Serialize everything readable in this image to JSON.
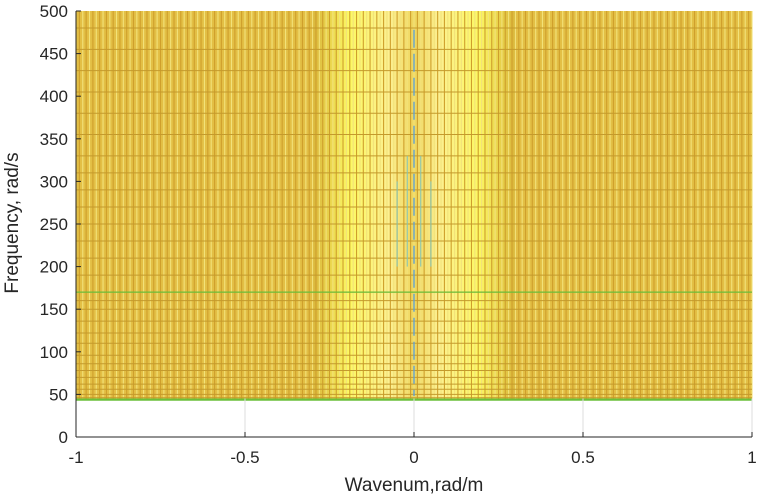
{
  "chart_data": {
    "type": "heatmap",
    "title": "",
    "xlabel": "Wavenum,rad/m",
    "ylabel": "Frequency, rad/s",
    "xlim": [
      -1,
      1
    ],
    "ylim": [
      0,
      500
    ],
    "x_ticks": [
      "-1",
      "-0.5",
      "0",
      "0.5",
      "1"
    ],
    "y_ticks": [
      "0",
      "50",
      "100",
      "150",
      "200",
      "250",
      "300",
      "350",
      "400",
      "450",
      "500"
    ],
    "grid": "on",
    "plot_style": "dispersion mesh (yellow/orange surface viewed from above)",
    "mesh": {
      "frequency_range": [
        45,
        500
      ],
      "bright_bands_wavenumber": [
        -0.3,
        0.3
      ],
      "row_frequencies": [
        46,
        50,
        56,
        62,
        70,
        78,
        86,
        96,
        110,
        122,
        136,
        150,
        160,
        170,
        190,
        210,
        230,
        250,
        270,
        290,
        310,
        330,
        355,
        380,
        405,
        430,
        455,
        480
      ]
    },
    "colors": {
      "mesh_lines": "#d9b53a",
      "bright_band": "#ffff66",
      "floor_line": "#6cbf3a",
      "low_wavenumber_ridge": "#5aa0d8",
      "axis": "#262626"
    }
  }
}
